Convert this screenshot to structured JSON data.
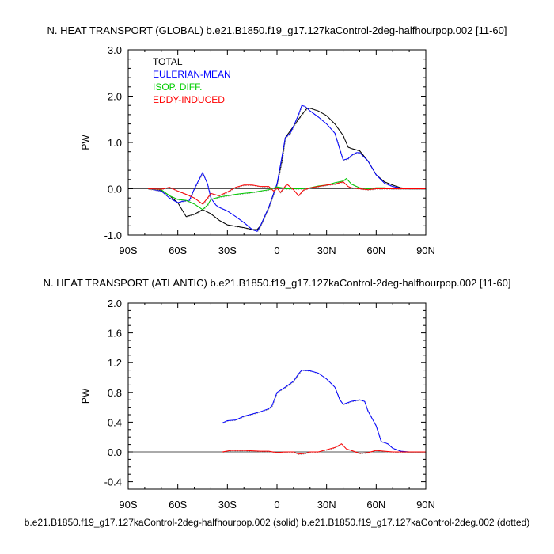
{
  "chart_data": [
    {
      "type": "line",
      "title": "N. HEAT TRANSPORT (GLOBAL) b.e21.B1850.f19_g17.127kaControl-2deg-halfhourpop.002 [11-60]",
      "xlabel": "",
      "ylabel": "PW",
      "xlim": [
        -90,
        90
      ],
      "ylim": [
        -1.0,
        3.0
      ],
      "xticks": [
        -90,
        -60,
        -30,
        0,
        30,
        60,
        90
      ],
      "xtick_labels": [
        "90S",
        "60S",
        "30S",
        "0",
        "30N",
        "60N",
        "90N"
      ],
      "yticks": [
        -1.0,
        0.0,
        1.0,
        2.0,
        3.0
      ],
      "ytick_labels": [
        "-1.0",
        "0.0",
        "1.0",
        "2.0",
        "3.0"
      ],
      "legend_position": "top-left",
      "series": [
        {
          "name": "TOTAL",
          "color": "#000000",
          "x": [
            -78,
            -70,
            -65,
            -60,
            -55,
            -50,
            -45,
            -40,
            -35,
            -30,
            -25,
            -20,
            -15,
            -12,
            -10,
            -5,
            0,
            3,
            5,
            10,
            15,
            18,
            20,
            25,
            30,
            35,
            40,
            43,
            45,
            50,
            55,
            60,
            65,
            70,
            75,
            80,
            90
          ],
          "y": [
            0,
            -0.03,
            -0.15,
            -0.3,
            -0.6,
            -0.55,
            -0.45,
            -0.54,
            -0.68,
            -0.78,
            -0.81,
            -0.84,
            -0.88,
            -0.88,
            -0.8,
            -0.4,
            0.1,
            0.6,
            1.1,
            1.35,
            1.6,
            1.73,
            1.74,
            1.68,
            1.58,
            1.4,
            1.15,
            0.9,
            0.87,
            0.82,
            0.6,
            0.3,
            0.15,
            0.08,
            0.02,
            0,
            0
          ]
        },
        {
          "name": "EULERIAN-MEAN",
          "color": "#0000ff",
          "x": [
            -78,
            -70,
            -65,
            -60,
            -57,
            -53,
            -50,
            -45,
            -42,
            -40,
            -37,
            -35,
            -30,
            -25,
            -20,
            -15,
            -12,
            -10,
            -5,
            0,
            3,
            5,
            8,
            10,
            13,
            15,
            17,
            20,
            25,
            30,
            35,
            38,
            40,
            43,
            45,
            48,
            50,
            55,
            60,
            65,
            70,
            75,
            80,
            90
          ],
          "y": [
            0,
            -0.05,
            -0.2,
            -0.3,
            -0.27,
            -0.25,
            0.0,
            0.35,
            0.1,
            -0.2,
            -0.35,
            -0.4,
            -0.48,
            -0.6,
            -0.73,
            -0.88,
            -0.92,
            -0.8,
            -0.4,
            0.1,
            0.7,
            1.1,
            1.2,
            1.35,
            1.6,
            1.8,
            1.78,
            1.68,
            1.55,
            1.4,
            1.2,
            0.85,
            0.62,
            0.65,
            0.72,
            0.78,
            0.78,
            0.6,
            0.3,
            0.12,
            0.05,
            0.01,
            0,
            0
          ]
        },
        {
          "name": "ISOP. DIFF.",
          "color": "#00cc00",
          "x": [
            -78,
            -70,
            -65,
            -60,
            -55,
            -50,
            -45,
            -42,
            -40,
            -35,
            -30,
            -25,
            -20,
            -15,
            -10,
            -5,
            0,
            3,
            5,
            10,
            15,
            20,
            25,
            30,
            35,
            40,
            42,
            45,
            50,
            55,
            60,
            65,
            70,
            80,
            90
          ],
          "y": [
            0,
            -0.02,
            -0.15,
            -0.23,
            -0.25,
            -0.33,
            -0.45,
            -0.35,
            -0.23,
            -0.18,
            -0.15,
            -0.12,
            -0.1,
            -0.08,
            -0.05,
            -0.02,
            0.04,
            0.02,
            0,
            0,
            0,
            0.02,
            0.06,
            0.08,
            0.13,
            0.17,
            0.22,
            0.1,
            0.02,
            0,
            0.02,
            0.02,
            0,
            0,
            0
          ]
        },
        {
          "name": "EDDY-INDUCED",
          "color": "#ff0000",
          "x": [
            -78,
            -70,
            -65,
            -60,
            -55,
            -50,
            -45,
            -42,
            -40,
            -35,
            -30,
            -25,
            -20,
            -15,
            -10,
            -5,
            -2,
            0,
            2,
            6,
            10,
            13,
            16,
            20,
            25,
            30,
            35,
            40,
            43,
            45,
            50,
            55,
            60,
            65,
            80,
            90
          ],
          "y": [
            0,
            -0.01,
            0.03,
            -0.05,
            -0.12,
            -0.2,
            -0.33,
            -0.2,
            -0.1,
            -0.15,
            -0.07,
            0.03,
            0.08,
            0.08,
            0.05,
            0.05,
            -0.05,
            0.02,
            -0.08,
            0.1,
            -0.02,
            -0.15,
            -0.03,
            0.02,
            0.05,
            0.08,
            0.1,
            0.15,
            0.05,
            0.02,
            0,
            -0.02,
            0,
            0,
            0,
            0
          ]
        }
      ]
    },
    {
      "type": "line",
      "title": "N. HEAT TRANSPORT (ATLANTIC) b.e21.B1850.f19_g17.127kaControl-2deg-halfhourpop.002 [11-60]",
      "xlabel": "",
      "ylabel": "PW",
      "xlim": [
        -90,
        90
      ],
      "ylim": [
        -0.5,
        2.0
      ],
      "xticks": [
        -90,
        -60,
        -30,
        0,
        30,
        60,
        90
      ],
      "xtick_labels": [
        "90S",
        "60S",
        "30S",
        "0",
        "30N",
        "60N",
        "90N"
      ],
      "yticks": [
        -0.4,
        0.0,
        0.4,
        0.8,
        1.2,
        1.6,
        2.0
      ],
      "ytick_labels": [
        "-0.4",
        "0.0",
        "0.4",
        "0.8",
        "1.2",
        "1.6",
        "2.0"
      ],
      "series": [
        {
          "color": "#0000ff",
          "x": [
            -33,
            -30,
            -25,
            -20,
            -15,
            -10,
            -5,
            -3,
            0,
            5,
            10,
            13,
            15,
            20,
            25,
            30,
            35,
            38,
            40,
            45,
            50,
            53,
            55,
            60,
            63,
            67,
            70,
            75,
            80,
            90
          ],
          "y": [
            0.39,
            0.42,
            0.43,
            0.48,
            0.51,
            0.54,
            0.58,
            0.62,
            0.8,
            0.87,
            0.95,
            1.05,
            1.1,
            1.09,
            1.06,
            0.98,
            0.87,
            0.7,
            0.64,
            0.68,
            0.7,
            0.68,
            0.55,
            0.35,
            0.14,
            0.11,
            0.05,
            0.01,
            0,
            0
          ]
        },
        {
          "color": "#ff0000",
          "x": [
            -33,
            -28,
            -20,
            -10,
            -5,
            0,
            5,
            10,
            13,
            17,
            20,
            25,
            30,
            35,
            39,
            42,
            45,
            50,
            55,
            60,
            65,
            70,
            90
          ],
          "y": [
            0,
            0.02,
            0.02,
            0.01,
            0.01,
            -0.01,
            0,
            0,
            -0.03,
            -0.02,
            0,
            0,
            0.03,
            0.06,
            0.11,
            0.04,
            0.02,
            -0.02,
            -0.01,
            0.02,
            0.01,
            0,
            0
          ]
        }
      ]
    }
  ],
  "footer": "b.e21.B1850.f19_g17.127kaControl-2deg-halfhourpop.002 (solid) b.e21.B1850.f19_g17.127kaControl-2deg.002 (dotted)"
}
